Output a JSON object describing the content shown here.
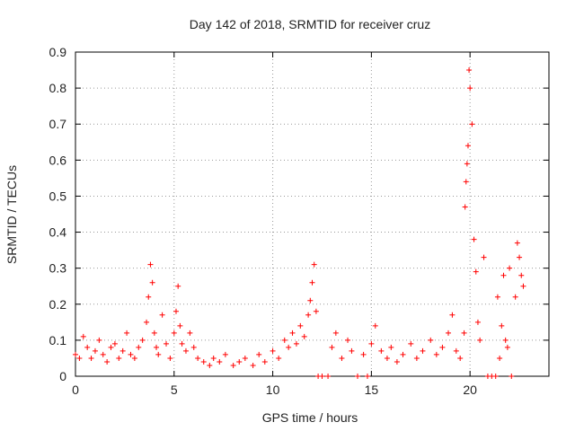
{
  "chart_data": {
    "type": "scatter",
    "title": "Day 142 of 2018, SRMTID for receiver cruz",
    "xlabel": "GPS time / hours",
    "ylabel": "SRMTID / TECUs",
    "xlim": [
      0,
      24
    ],
    "ylim": [
      0,
      0.9
    ],
    "x_ticks": [
      "0",
      "5",
      "10",
      "15",
      "20"
    ],
    "y_ticks": [
      "0",
      "0.1",
      "0.2",
      "0.3",
      "0.4",
      "0.5",
      "0.6",
      "0.7",
      "0.8",
      "0.9"
    ],
    "grid": true,
    "marker": "+",
    "color": "#ff0000",
    "series": [
      {
        "name": "SRMTID",
        "x": [
          0.0,
          0.2,
          0.4,
          0.6,
          0.8,
          1.0,
          1.2,
          1.4,
          1.6,
          1.8,
          2.0,
          2.2,
          2.4,
          2.6,
          2.8,
          3.0,
          3.2,
          3.4,
          3.6,
          3.7,
          3.8,
          3.9,
          4.0,
          4.1,
          4.2,
          4.4,
          4.6,
          4.8,
          5.0,
          5.1,
          5.2,
          5.3,
          5.4,
          5.6,
          5.8,
          6.0,
          6.2,
          6.5,
          6.8,
          7.0,
          7.3,
          7.6,
          8.0,
          8.3,
          8.6,
          9.0,
          9.3,
          9.6,
          10.0,
          10.3,
          10.6,
          10.8,
          11.0,
          11.2,
          11.4,
          11.6,
          11.8,
          11.9,
          12.0,
          12.1,
          12.2,
          12.3,
          12.5,
          12.8,
          13.0,
          13.2,
          13.5,
          13.8,
          14.0,
          14.3,
          14.6,
          14.8,
          15.0,
          15.2,
          15.5,
          15.8,
          16.0,
          16.3,
          16.6,
          17.0,
          17.3,
          17.6,
          18.0,
          18.3,
          18.6,
          18.9,
          19.1,
          19.3,
          19.5,
          19.7,
          19.75,
          19.8,
          19.85,
          19.9,
          19.95,
          20.0,
          20.1,
          20.2,
          20.3,
          20.4,
          20.5,
          20.7,
          20.9,
          21.1,
          21.3,
          21.4,
          21.5,
          21.6,
          21.7,
          21.8,
          21.9,
          22.0,
          22.1,
          22.3,
          22.4,
          22.5,
          22.6,
          22.7
        ],
        "y": [
          0.06,
          0.05,
          0.11,
          0.08,
          0.05,
          0.07,
          0.1,
          0.06,
          0.04,
          0.08,
          0.09,
          0.05,
          0.07,
          0.12,
          0.06,
          0.05,
          0.08,
          0.1,
          0.15,
          0.22,
          0.31,
          0.26,
          0.12,
          0.08,
          0.06,
          0.17,
          0.09,
          0.05,
          0.12,
          0.18,
          0.25,
          0.14,
          0.09,
          0.07,
          0.12,
          0.08,
          0.05,
          0.04,
          0.03,
          0.05,
          0.04,
          0.06,
          0.03,
          0.04,
          0.05,
          0.03,
          0.06,
          0.04,
          0.07,
          0.05,
          0.1,
          0.08,
          0.12,
          0.09,
          0.14,
          0.11,
          0.17,
          0.21,
          0.26,
          0.31,
          0.18,
          0.0,
          0.0,
          0.0,
          0.08,
          0.12,
          0.05,
          0.1,
          0.07,
          0.0,
          0.06,
          0.0,
          0.09,
          0.14,
          0.07,
          0.05,
          0.08,
          0.04,
          0.06,
          0.09,
          0.05,
          0.07,
          0.1,
          0.06,
          0.08,
          0.12,
          0.17,
          0.07,
          0.05,
          0.12,
          0.47,
          0.54,
          0.59,
          0.64,
          0.85,
          0.8,
          0.7,
          0.38,
          0.29,
          0.15,
          0.1,
          0.33,
          0.0,
          0.0,
          0.0,
          0.22,
          0.05,
          0.14,
          0.28,
          0.1,
          0.08,
          0.3,
          0.0,
          0.22,
          0.37,
          0.33,
          0.28,
          0.25
        ]
      }
    ]
  }
}
